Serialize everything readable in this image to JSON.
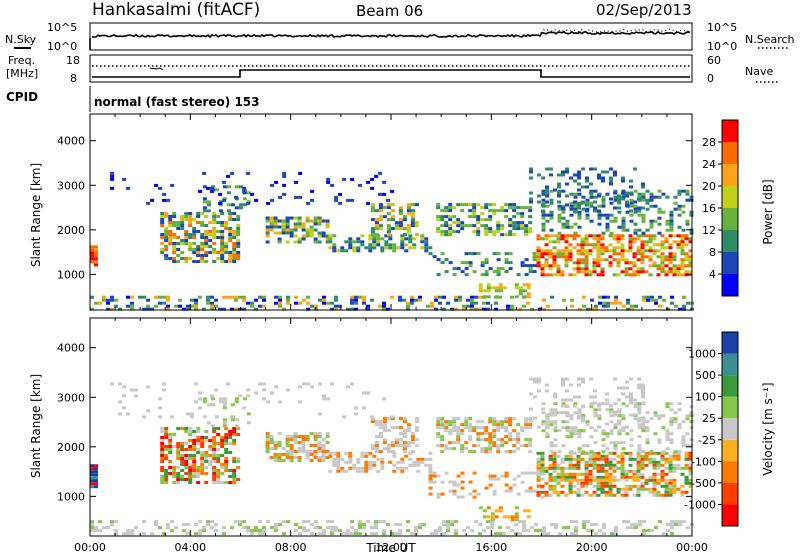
{
  "header": {
    "station": "Hankasalmi (fitACF)",
    "beam": "Beam 06",
    "date": "02/Sep/2013"
  },
  "noise_panel": {
    "left_label": "N.Sky",
    "right_label": "N.Search",
    "left_ticks": [
      "10^5",
      "10^0"
    ],
    "right_ticks": [
      "10^5",
      "10^0"
    ]
  },
  "freq_panel": {
    "left_label_1": "Freq.",
    "left_label_2": "[MHz]",
    "left_ticks": [
      "18",
      "8"
    ],
    "right_label": "Nave",
    "right_ticks": [
      "60",
      "0"
    ]
  },
  "cpid": {
    "label": "CPID",
    "text": "normal (fast stereo) 153"
  },
  "chart_data": [
    {
      "type": "heatmap",
      "name": "power",
      "ylabel": "Slant Range [km]",
      "xlabel": "",
      "yticks": [
        "1000",
        "2000",
        "3000",
        "4000"
      ],
      "ylim": [
        200,
        4600
      ],
      "xlim": [
        0,
        24
      ],
      "colorbar": {
        "label": "Power [dB]",
        "ticks": [
          "4",
          "8",
          "12",
          "16",
          "20",
          "24",
          "28"
        ],
        "colors": [
          "#0000ff",
          "#1d46b8",
          "#2f8a6a",
          "#66b23a",
          "#c0d01a",
          "#ffa31a",
          "#ff6a00",
          "#ff0000"
        ]
      }
    },
    {
      "type": "heatmap",
      "name": "velocity",
      "ylabel": "Slant Range [km]",
      "xlabel": "Time UT",
      "yticks": [
        "1000",
        "2000",
        "3000",
        "4000"
      ],
      "ylim": [
        200,
        4600
      ],
      "xlim": [
        0,
        24
      ],
      "xticks": [
        "00:00",
        "04:00",
        "08:00",
        "12:00",
        "16:00",
        "20:00",
        "00:00"
      ],
      "colorbar": {
        "label": "Velocity [m s⁻¹]",
        "ticks": [
          "1000",
          "500",
          "100",
          "25",
          "-25",
          "-100",
          "-500",
          "-1000"
        ],
        "colors": [
          "#1d3fa8",
          "#3d8f96",
          "#3b9a3c",
          "#86c94a",
          "#c8c8c8",
          "#ffb020",
          "#ff7b00",
          "#ff3d00",
          "#ff0000"
        ]
      }
    }
  ]
}
